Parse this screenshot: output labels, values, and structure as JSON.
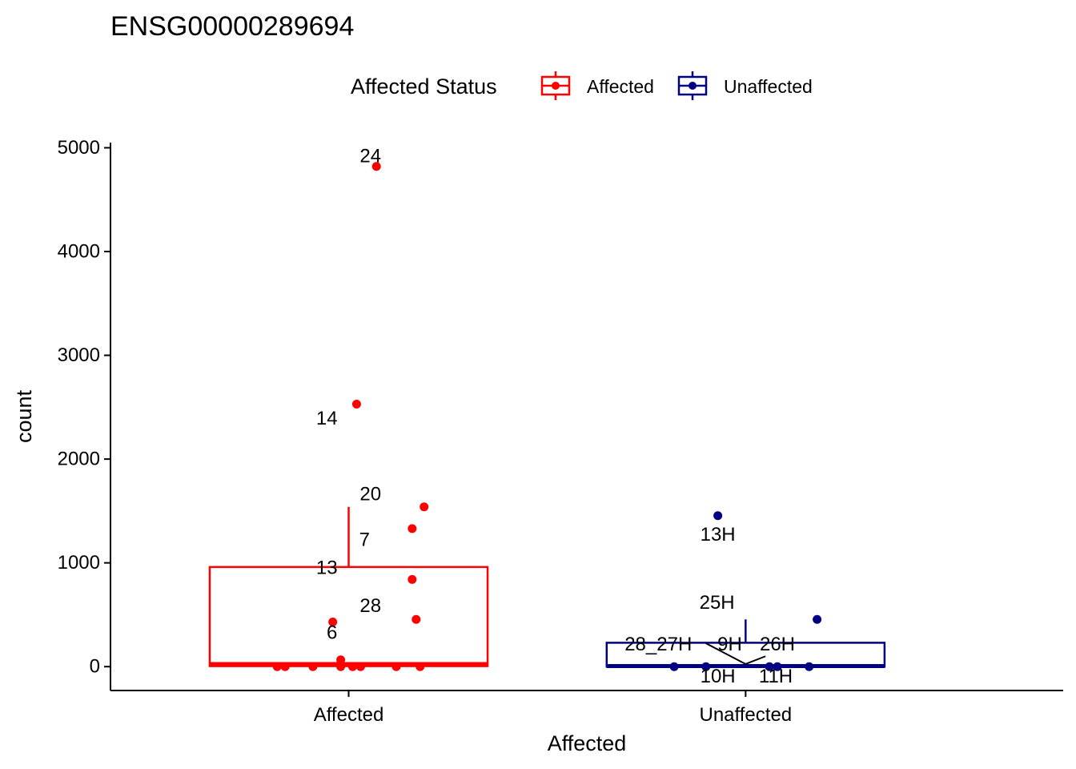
{
  "chart_data": {
    "type": "boxplot",
    "title": "ENSG00000289694",
    "xlabel": "Affected",
    "ylabel": "count",
    "ylim": [
      -230,
      5050
    ],
    "y_ticks": [
      0,
      1000,
      2000,
      3000,
      4000,
      5000
    ],
    "y_tick_labels": [
      "0",
      "1000",
      "2000",
      "3000",
      "4000",
      "5000"
    ],
    "categories": [
      "Affected",
      "Unaffected"
    ],
    "grid": false,
    "legend": {
      "title": "Affected Status",
      "position": "top",
      "items": [
        {
          "label": "Affected",
          "color": "#ff0000"
        },
        {
          "label": "Unaffected",
          "color": "#000080"
        }
      ]
    },
    "boxes": [
      {
        "category": "Affected",
        "color": "#ff0000",
        "q1": 5,
        "median": 25,
        "q3": 960,
        "whisker_low": 0,
        "whisker_high": 1540
      },
      {
        "category": "Unaffected",
        "color": "#000080",
        "q1": 0,
        "median": 5,
        "q3": 230,
        "whisker_low": 0,
        "whisker_high": 455
      }
    ],
    "points": [
      {
        "category": "Affected",
        "jitter": 0.07,
        "y": 4820
      },
      {
        "category": "Affected",
        "jitter": 0.02,
        "y": 2530
      },
      {
        "category": "Affected",
        "jitter": 0.19,
        "y": 1540
      },
      {
        "category": "Affected",
        "jitter": 0.16,
        "y": 1330
      },
      {
        "category": "Affected",
        "jitter": 0.16,
        "y": 840
      },
      {
        "category": "Affected",
        "jitter": 0.17,
        "y": 455
      },
      {
        "category": "Affected",
        "jitter": -0.04,
        "y": 430
      },
      {
        "category": "Affected",
        "jitter": -0.02,
        "y": 65
      },
      {
        "category": "Affected",
        "jitter": -0.02,
        "y": 25
      },
      {
        "category": "Affected",
        "jitter": -0.18,
        "y": 0
      },
      {
        "category": "Affected",
        "jitter": -0.16,
        "y": 0
      },
      {
        "category": "Affected",
        "jitter": -0.09,
        "y": 0
      },
      {
        "category": "Affected",
        "jitter": -0.02,
        "y": 0
      },
      {
        "category": "Affected",
        "jitter": 0.01,
        "y": 0
      },
      {
        "category": "Affected",
        "jitter": 0.03,
        "y": 0
      },
      {
        "category": "Affected",
        "jitter": 0.12,
        "y": 0
      },
      {
        "category": "Affected",
        "jitter": 0.18,
        "y": 0
      },
      {
        "category": "Unaffected",
        "jitter": -0.07,
        "y": 1455
      },
      {
        "category": "Unaffected",
        "jitter": 0.18,
        "y": 455
      },
      {
        "category": "Unaffected",
        "jitter": -0.18,
        "y": 0
      },
      {
        "category": "Unaffected",
        "jitter": -0.1,
        "y": 0
      },
      {
        "category": "Unaffected",
        "jitter": 0.06,
        "y": 0
      },
      {
        "category": "Unaffected",
        "jitter": 0.08,
        "y": 0
      },
      {
        "category": "Unaffected",
        "jitter": 0.16,
        "y": 0
      }
    ],
    "annotations": [
      {
        "text": "24",
        "category": "Affected",
        "x": 0.055,
        "y": 4920
      },
      {
        "text": "14",
        "category": "Affected",
        "x": -0.055,
        "y": 2390
      },
      {
        "text": "20",
        "category": "Affected",
        "x": 0.055,
        "y": 1660
      },
      {
        "text": "7",
        "category": "Affected",
        "x": 0.04,
        "y": 1220
      },
      {
        "text": "13",
        "category": "Affected",
        "x": -0.055,
        "y": 950
      },
      {
        "text": "28",
        "category": "Affected",
        "x": 0.055,
        "y": 585
      },
      {
        "text": "6",
        "category": "Affected",
        "x": -0.042,
        "y": 325
      },
      {
        "text": "13H",
        "category": "Unaffected",
        "x": -0.07,
        "y": 1270
      },
      {
        "text": "25H",
        "category": "Unaffected",
        "x": -0.072,
        "y": 615
      },
      {
        "text": "28_27H",
        "category": "Unaffected",
        "x": -0.22,
        "y": 215
      },
      {
        "text": "9H",
        "category": "Unaffected",
        "x": -0.04,
        "y": 215
      },
      {
        "text": "26H",
        "category": "Unaffected",
        "x": 0.08,
        "y": 215
      },
      {
        "text": "10H",
        "category": "Unaffected",
        "x": -0.07,
        "y": -95
      },
      {
        "text": "11H",
        "category": "Unaffected",
        "x": 0.076,
        "y": -95
      }
    ],
    "connectors": [
      {
        "category": "Unaffected",
        "from": [
          -0.1,
          225
        ],
        "to": [
          0,
          25
        ]
      },
      {
        "category": "Unaffected",
        "from": [
          0,
          25
        ],
        "to": [
          0.05,
          100
        ]
      }
    ]
  }
}
